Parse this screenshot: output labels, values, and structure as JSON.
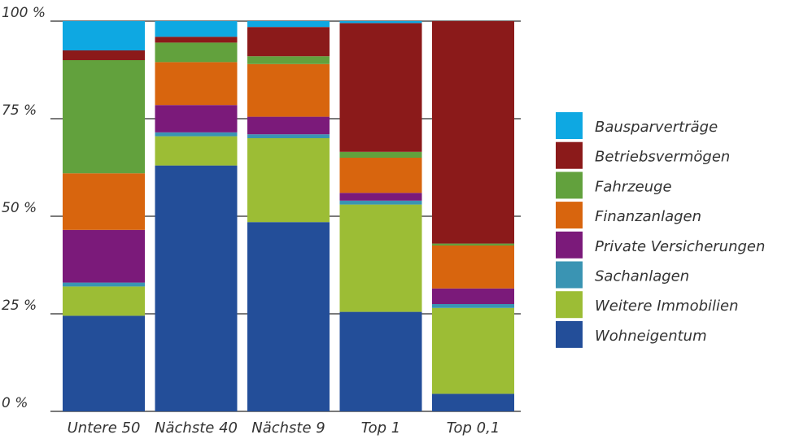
{
  "chart_data": {
    "type": "bar",
    "stacked": true,
    "title": "",
    "xlabel": "",
    "ylabel": "",
    "ylim": [
      0,
      100
    ],
    "yticks": [
      0,
      25,
      50,
      75,
      100
    ],
    "ytick_labels": [
      "0 %",
      "25 %",
      "50 %",
      "75 %",
      "100 %"
    ],
    "categories": [
      "Untere 50",
      "Nächste 40",
      "Nächste 9",
      "Top 1",
      "Top 0,1"
    ],
    "legend_position": "right",
    "grid": true,
    "series": [
      {
        "name": "Wohneigentum",
        "color": "#234e99",
        "values": [
          24.5,
          63,
          48.5,
          25.5,
          4.5
        ]
      },
      {
        "name": "Weitere Immobilien",
        "color": "#9cbd35",
        "values": [
          7.5,
          7.5,
          21.5,
          27.5,
          22
        ]
      },
      {
        "name": "Sachanlagen",
        "color": "#3a94b3",
        "values": [
          1,
          1,
          1,
          1,
          1
        ]
      },
      {
        "name": "Private Versicherungen",
        "color": "#7b1a7a",
        "values": [
          13.5,
          7,
          4.5,
          2,
          4
        ]
      },
      {
        "name": "Finanzanlagen",
        "color": "#d8650e",
        "values": [
          14.5,
          11,
          13.5,
          9,
          11
        ]
      },
      {
        "name": "Fahrzeuge",
        "color": "#62a13d",
        "values": [
          29,
          5,
          2,
          1.5,
          0.5
        ]
      },
      {
        "name": "Betriebsvermögen",
        "color": "#8b1a1a",
        "values": [
          2.5,
          1.5,
          7.5,
          33,
          57
        ]
      },
      {
        "name": "Bausparverträge",
        "color": "#0ea8e2",
        "values": [
          7.5,
          4,
          1.5,
          0.5,
          0
        ]
      }
    ]
  }
}
